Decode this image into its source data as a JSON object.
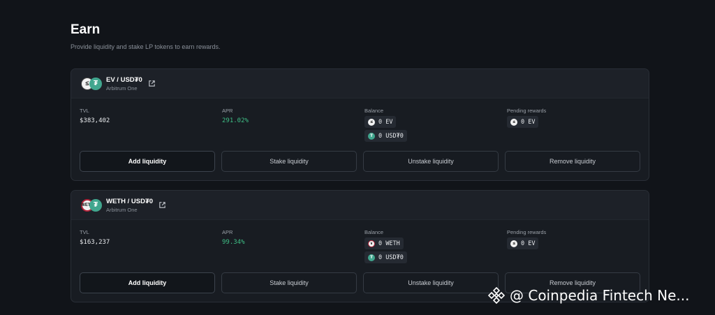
{
  "page": {
    "title": "Earn",
    "subtitle": "Provide liquidity and stake LP tokens to earn rewards."
  },
  "labels": {
    "tvl": "TVL",
    "apr": "APR",
    "balance": "Balance",
    "pending_rewards": "Pending rewards"
  },
  "actions": {
    "add": "Add liquidity",
    "stake": "Stake liquidity",
    "unstake": "Unstake liquidity",
    "remove": "Remove liquidity"
  },
  "pools": [
    {
      "pair": "EV / USD₮0",
      "network": "Arbitrum One",
      "tvl": "$383,402",
      "apr": "291.02%",
      "balance": [
        "0 EV",
        "0 USD₮0"
      ],
      "pending": "0 EV",
      "icons": [
        "ev-icon",
        "usdt-icon"
      ]
    },
    {
      "pair": "WETH / USD₮0",
      "network": "Arbitrum One",
      "tvl": "$163,237",
      "apr": "99.34%",
      "balance": [
        "0 WETH",
        "0 USD₮0"
      ],
      "pending": "0 EV",
      "icons": [
        "weth-icon",
        "usdt-icon"
      ]
    }
  ],
  "watermark": "@ Coinpedia Fintech Ne...",
  "colors": {
    "background": "#111419",
    "card": "#181c22",
    "apr_green": "#3fbf86",
    "usdt_green": "#41a68e",
    "weth_red": "#b3243a"
  }
}
